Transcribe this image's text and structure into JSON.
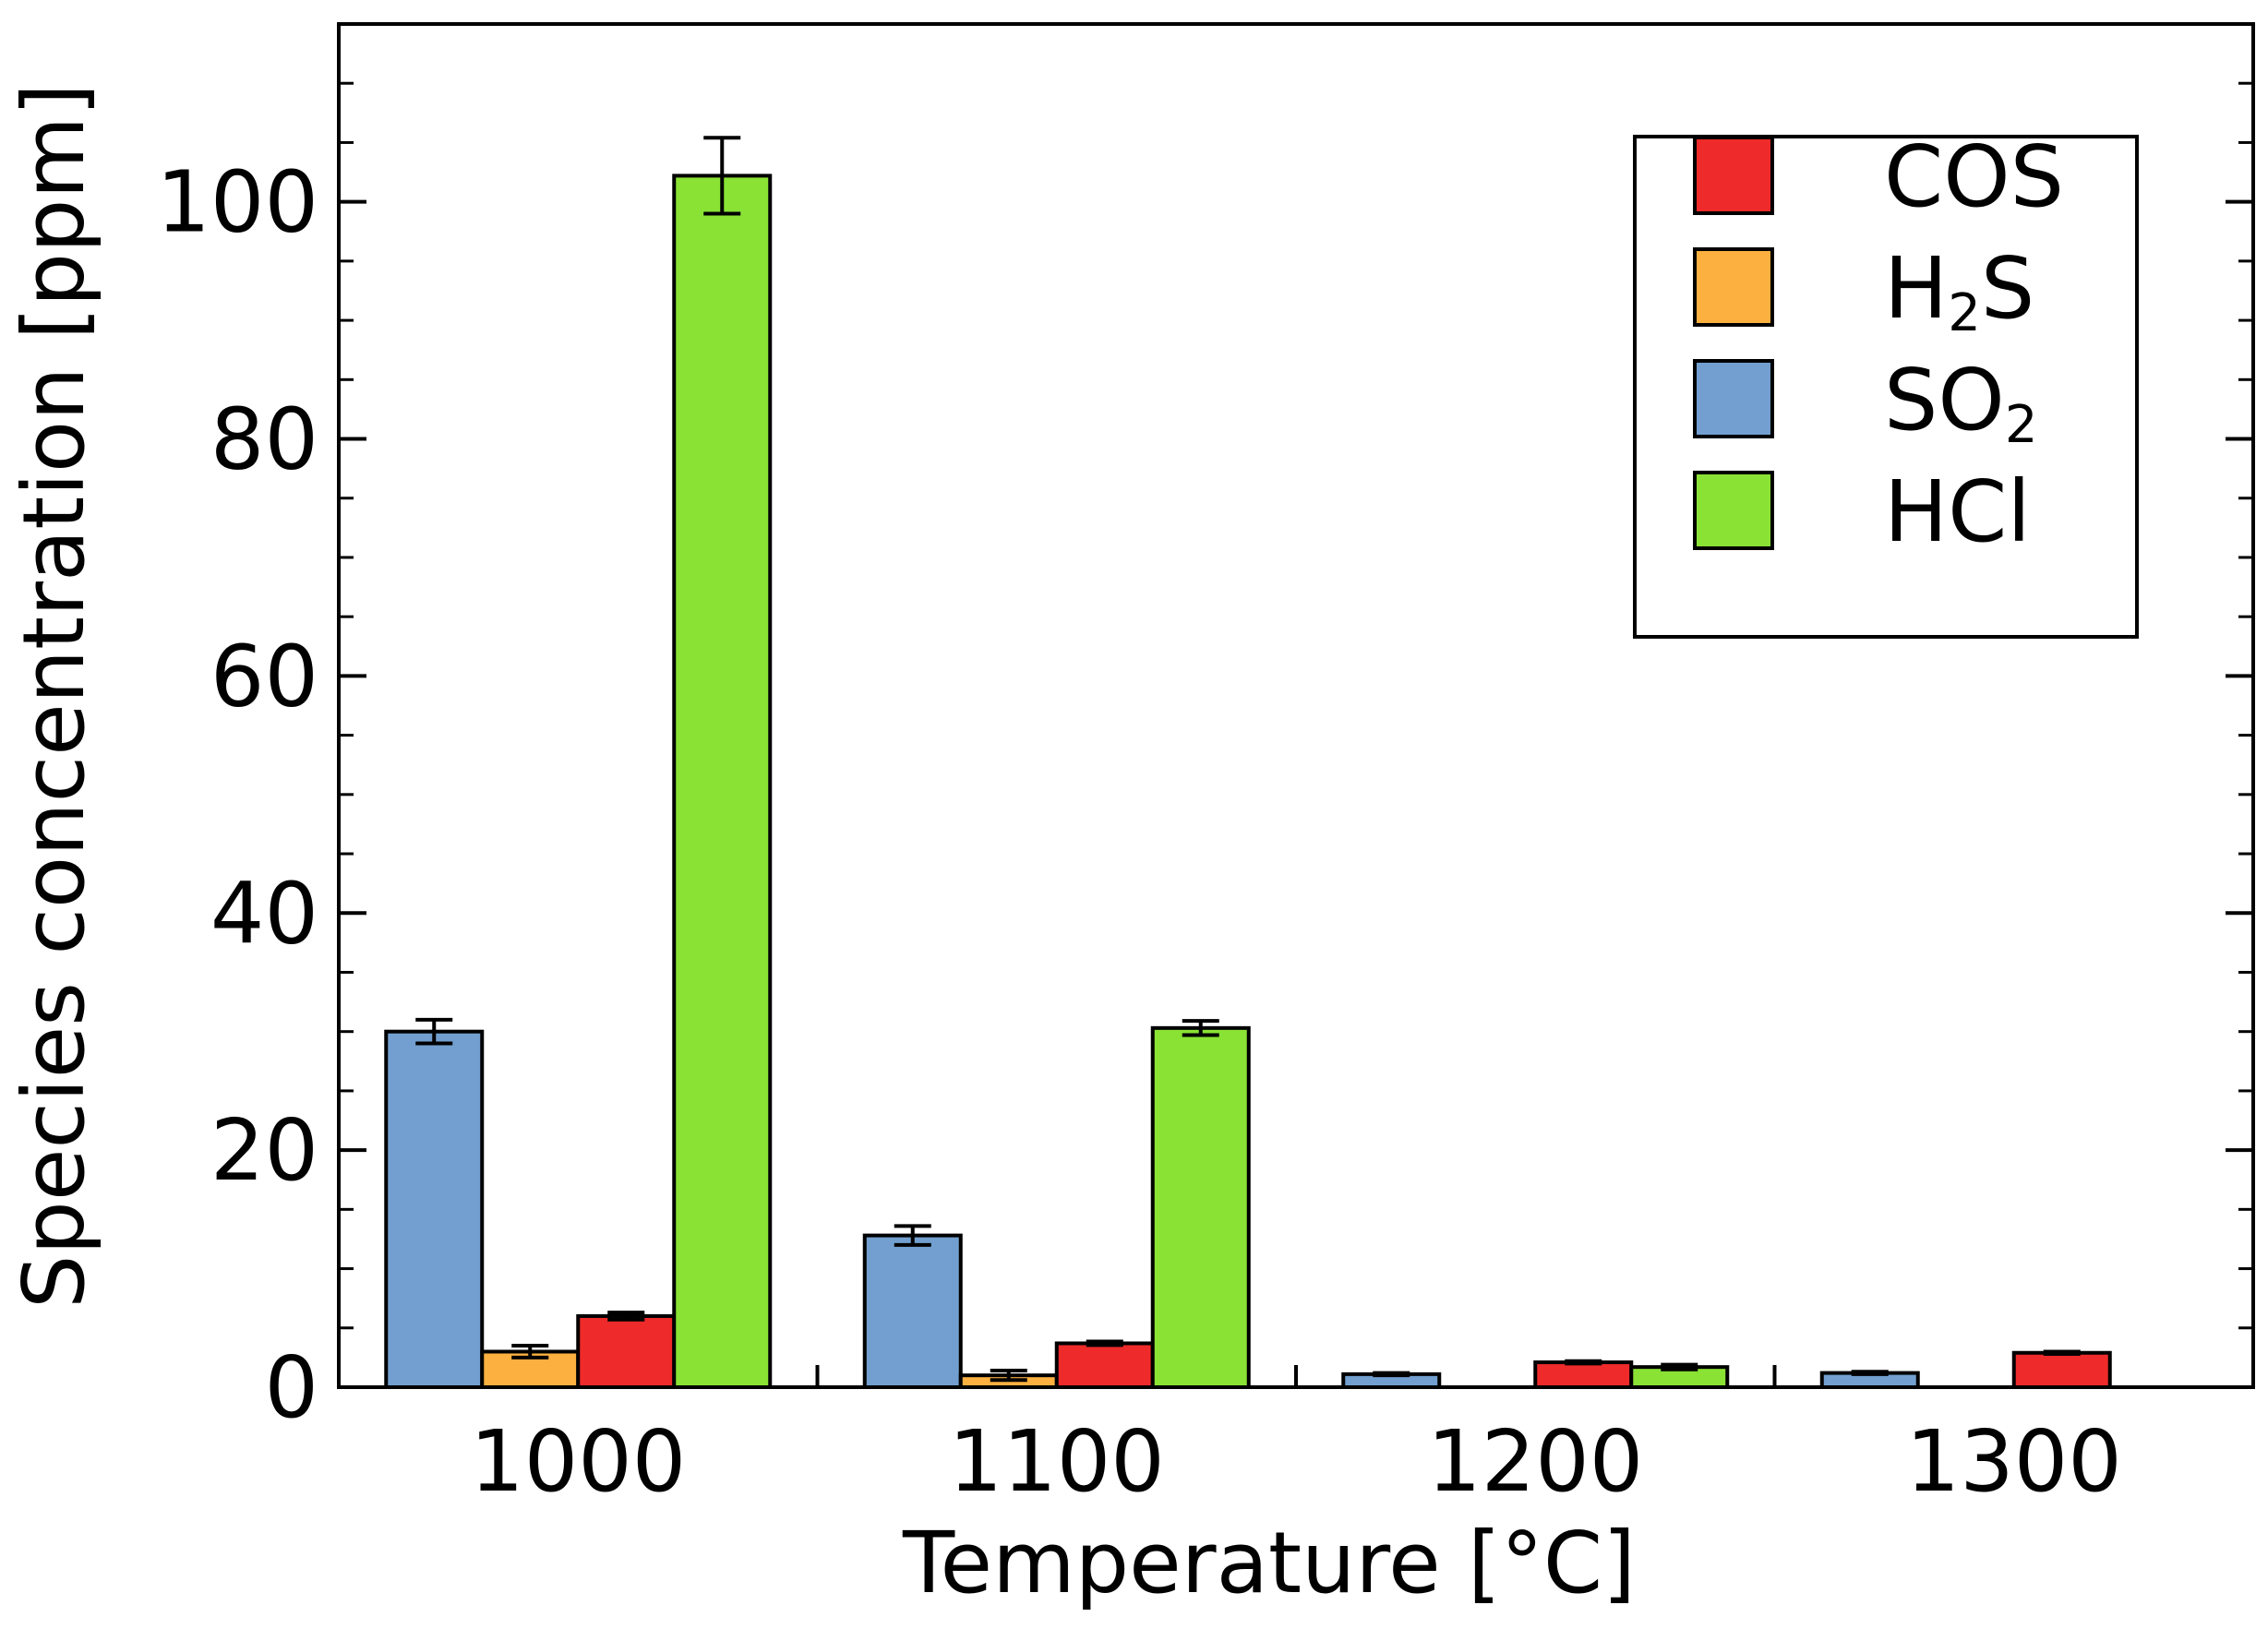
{
  "chart_data": {
    "type": "bar",
    "xlabel": "Temperature [°C]",
    "ylabel": "Species concentration [ppm]",
    "categories": [
      "1000",
      "1100",
      "1200",
      "1300"
    ],
    "ylim": [
      0,
      115
    ],
    "yticks": [
      0,
      20,
      40,
      60,
      80,
      100
    ],
    "grid": false,
    "legend_position": "top-right",
    "bar_order": [
      "SO2",
      "H2S",
      "COS",
      "HCl"
    ],
    "series": [
      {
        "key": "COS",
        "name": "COS",
        "color": "#ee2a2a",
        "values": [
          6.0,
          3.7,
          2.1,
          2.9
        ],
        "errors": [
          0.3,
          0.15,
          0.1,
          0.1
        ]
      },
      {
        "key": "H2S",
        "name": "H",
        "sub": "2",
        "suffix": "S",
        "color": "#fbb040",
        "values": [
          3.0,
          1.0,
          0,
          0
        ],
        "errors": [
          0.5,
          0.4,
          0,
          0
        ]
      },
      {
        "key": "SO2",
        "name": "SO",
        "sub": "2",
        "suffix": "",
        "color": "#729fcf",
        "values": [
          30.0,
          12.8,
          1.1,
          1.2
        ],
        "errors": [
          1.0,
          0.8,
          0.1,
          0.1
        ]
      },
      {
        "key": "HCl",
        "name": "HCl",
        "color": "#8ae234",
        "values": [
          102.2,
          30.3,
          1.7,
          0
        ],
        "errors": [
          3.2,
          0.6,
          0.2,
          0
        ]
      }
    ]
  }
}
